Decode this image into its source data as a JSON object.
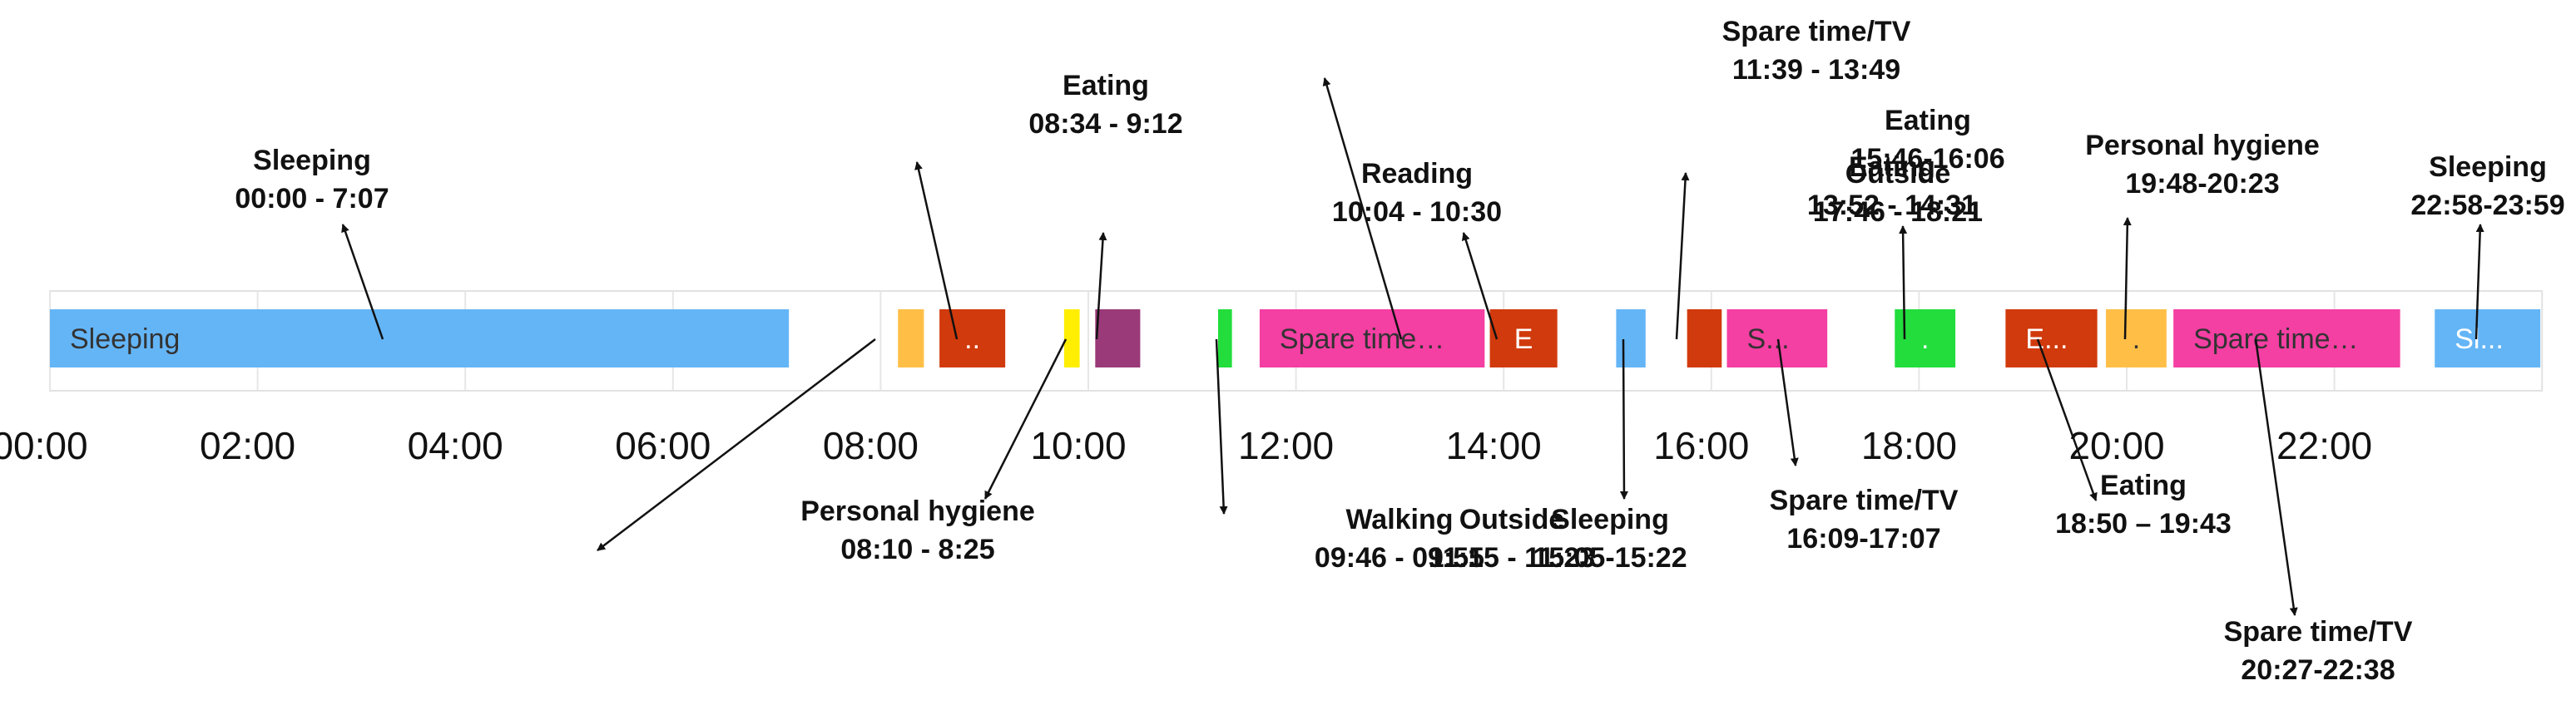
{
  "chart_data": {
    "type": "timeline",
    "xlim": [
      "00:00",
      "24:00"
    ],
    "ticks": [
      "00:00",
      "02:00",
      "04:00",
      "06:00",
      "08:00",
      "10:00",
      "12:00",
      "14:00",
      "16:00",
      "18:00",
      "20:00",
      "22:00"
    ],
    "grid": "vertical",
    "colors": {
      "Sleeping": "#64b5f6",
      "Personal hygiene": "#ffbf47",
      "Eating": "#d13a0c",
      "Walking": "#ffee00",
      "Reading": "#9a3a78",
      "Outside": "#22dd3c",
      "Spare time/TV": "#f43fa3"
    },
    "segments": [
      {
        "activity": "Sleeping",
        "start": "00:00",
        "end": "07:07",
        "label": "Sleeping",
        "text_color": "#333333"
      },
      {
        "activity": "Personal hygiene",
        "start": "08:10",
        "end": "08:25",
        "label": ""
      },
      {
        "activity": "Eating",
        "start": "08:34",
        "end": "09:12",
        "label": "..",
        "text_color": "#ffffff"
      },
      {
        "activity": "Walking",
        "start": "09:46",
        "end": "09:55",
        "label": ""
      },
      {
        "activity": "Reading",
        "start": "10:04",
        "end": "10:30",
        "label": ""
      },
      {
        "activity": "Outside",
        "start": "11:15",
        "end": "11:23",
        "label": ""
      },
      {
        "activity": "Spare time/TV",
        "start": "11:39",
        "end": "13:49",
        "label": "Spare time…",
        "text_color": "#333333"
      },
      {
        "activity": "Eating",
        "start": "13:52",
        "end": "14:31",
        "label": "E",
        "text_color": "#ffffff"
      },
      {
        "activity": "Sleeping",
        "start": "15:05",
        "end": "15:22",
        "label": ""
      },
      {
        "activity": "Eating",
        "start": "15:46",
        "end": "16:06",
        "label": ""
      },
      {
        "activity": "Spare time/TV",
        "start": "16:09",
        "end": "17:07",
        "label": "S...",
        "text_color": "#333333"
      },
      {
        "activity": "Outside",
        "start": "17:46",
        "end": "18:21",
        "label": ".",
        "text_color": "#ffffff"
      },
      {
        "activity": "Eating",
        "start": "18:50",
        "end": "19:43",
        "label": "E...",
        "text_color": "#ffffff"
      },
      {
        "activity": "Personal hygiene",
        "start": "19:48",
        "end": "20:23",
        "label": ".",
        "text_color": "#333333"
      },
      {
        "activity": "Spare time/TV",
        "start": "20:27",
        "end": "22:38",
        "label": "Spare time…",
        "text_color": "#333333"
      },
      {
        "activity": "Sleeping",
        "start": "22:58",
        "end": "23:59",
        "label": "Sl...",
        "text_color": "#ffffff"
      }
    ],
    "annotations": [
      {
        "name": "Sleeping",
        "range": "00:00 - 7:07",
        "segment": 0,
        "position": "above"
      },
      {
        "name": "Personal hygiene",
        "range": "08:10 - 8:25",
        "segment": 1,
        "position": "below"
      },
      {
        "name": "Eating",
        "range": "08:34 - 9:12",
        "segment": 2,
        "position": "above"
      },
      {
        "name": "Walking",
        "range": "09:46 - 09:55",
        "segment": 3,
        "position": "below"
      },
      {
        "name": "Reading",
        "range": "10:04 - 10:30",
        "segment": 4,
        "position": "above"
      },
      {
        "name": "Outside",
        "range": "11:15 - 11:23",
        "segment": 5,
        "position": "below"
      },
      {
        "name": "Spare time/TV",
        "range": "11:39 - 13:49",
        "segment": 6,
        "position": "above"
      },
      {
        "name": "Eating",
        "range": "13:52 - 14:31",
        "segment": 7,
        "position": "above"
      },
      {
        "name": "Sleeping",
        "range": "15:05-15:22",
        "segment": 8,
        "position": "below"
      },
      {
        "name": "Eating",
        "range": "15:46-16:06",
        "segment": 9,
        "position": "above"
      },
      {
        "name": "Spare time/TV",
        "range": "16:09-17:07",
        "segment": 10,
        "position": "below"
      },
      {
        "name": "Outside",
        "range": "17:46 - 18:21",
        "segment": 11,
        "position": "above"
      },
      {
        "name": "Eating",
        "range": "18:50 – 19:43",
        "segment": 12,
        "position": "below"
      },
      {
        "name": "Personal hygiene",
        "range": "19:48-20:23",
        "segment": 13,
        "position": "above"
      },
      {
        "name": "Spare time/TV",
        "range": "20:27-22:38",
        "segment": 14,
        "position": "below"
      },
      {
        "name": "Sleeping",
        "range": "22:58-23:59",
        "segment": 15,
        "position": "above"
      }
    ]
  }
}
